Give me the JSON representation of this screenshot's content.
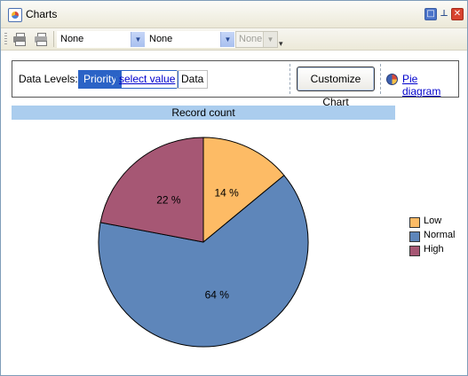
{
  "window": {
    "title": "Charts"
  },
  "title_buttons": {
    "restore": "□",
    "pin": "⊥",
    "close": "✕"
  },
  "toolbar": {
    "combo1": "None",
    "combo2": "None",
    "combo3": "None",
    "arrow": "▼",
    "overflow": "▾"
  },
  "panel": {
    "data_levels_label": "Data Levels:",
    "priority_chip": "Priority",
    "select_value_link": "select value",
    "data_chip": "Data",
    "customize_button": "Customize Chart",
    "pie_diagram_link": "Pie diagram"
  },
  "chart_data": {
    "type": "pie",
    "title": "Record count",
    "slices": [
      {
        "name": "Low",
        "value": 14,
        "label": "14 %",
        "color": "#fdbb65"
      },
      {
        "name": "Normal",
        "value": 64,
        "label": "64 %",
        "color": "#5e86ba"
      },
      {
        "name": "High",
        "value": 22,
        "label": "22 %",
        "color": "#a65774"
      }
    ],
    "legend_position": "right"
  }
}
